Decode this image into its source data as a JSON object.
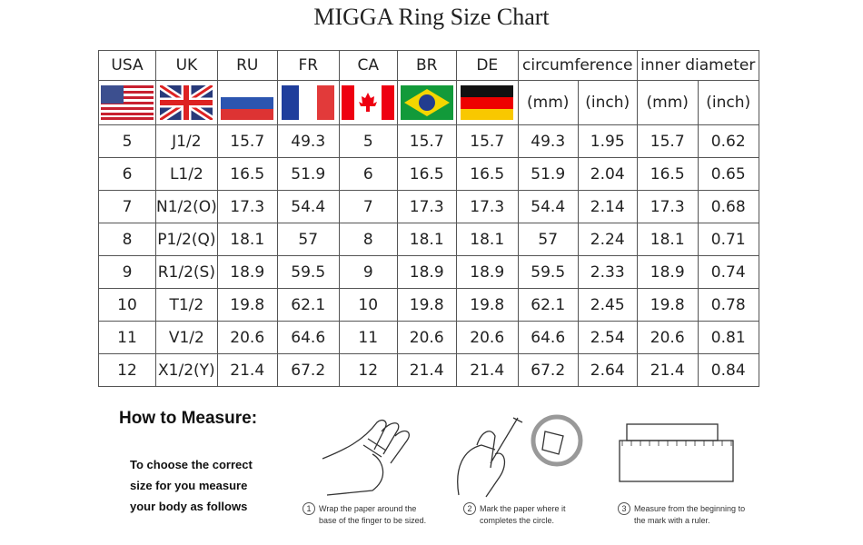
{
  "title": "MIGGA Ring Size Chart",
  "headers": [
    "USA",
    "UK",
    "RU",
    "FR",
    "CA",
    "BR",
    "DE",
    "circumference",
    "inner diameter"
  ],
  "subheaders": [
    "(mm)",
    "(inch)",
    "(mm)",
    "(inch)"
  ],
  "flags": [
    "us-flag",
    "uk-flag",
    "russia-flag",
    "france-flag",
    "canada-flag",
    "brazil-flag",
    "germany-flag"
  ],
  "rows": [
    [
      "5",
      "J1/2",
      "15.7",
      "49.3",
      "5",
      "15.7",
      "15.7",
      "49.3",
      "1.95",
      "15.7",
      "0.62"
    ],
    [
      "6",
      "L1/2",
      "16.5",
      "51.9",
      "6",
      "16.5",
      "16.5",
      "51.9",
      "2.04",
      "16.5",
      "0.65"
    ],
    [
      "7",
      "N1/2(O)",
      "17.3",
      "54.4",
      "7",
      "17.3",
      "17.3",
      "54.4",
      "2.14",
      "17.3",
      "0.68"
    ],
    [
      "8",
      "P1/2(Q)",
      "18.1",
      "57",
      "8",
      "18.1",
      "18.1",
      "57",
      "2.24",
      "18.1",
      "0.71"
    ],
    [
      "9",
      "R1/2(S)",
      "18.9",
      "59.5",
      "9",
      "18.9",
      "18.9",
      "59.5",
      "2.33",
      "18.9",
      "0.74"
    ],
    [
      "10",
      "T1/2",
      "19.8",
      "62.1",
      "10",
      "19.8",
      "19.8",
      "62.1",
      "2.45",
      "19.8",
      "0.78"
    ],
    [
      "11",
      "V1/2",
      "20.6",
      "64.6",
      "11",
      "20.6",
      "20.6",
      "64.6",
      "2.54",
      "20.6",
      "0.81"
    ],
    [
      "12",
      "X1/2(Y)",
      "21.4",
      "67.2",
      "12",
      "21.4",
      "21.4",
      "67.2",
      "2.64",
      "21.4",
      "0.84"
    ]
  ],
  "how_to": {
    "heading": "How to Measure:",
    "intro": [
      "To choose the correct",
      "size for you measure",
      "your body as follows"
    ],
    "steps": [
      {
        "num": "1",
        "lines": [
          "Wrap the paper around the",
          "base of the finger to be sized."
        ]
      },
      {
        "num": "2",
        "lines": [
          "Mark the paper where it",
          "completes the circle."
        ]
      },
      {
        "num": "3",
        "lines": [
          "Measure from the beginning to",
          "the mark with a ruler."
        ]
      }
    ]
  }
}
